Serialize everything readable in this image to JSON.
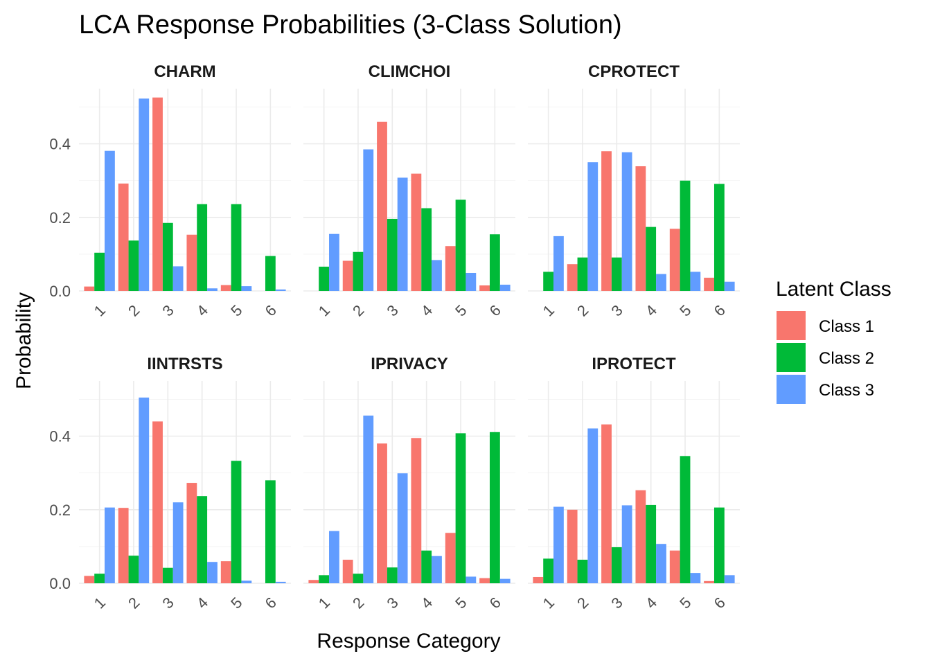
{
  "chart_data": {
    "type": "bar",
    "title": "LCA Response Probabilities (3-Class Solution)",
    "xlabel": "Response Category",
    "ylabel": "Probability",
    "categories": [
      "1",
      "2",
      "3",
      "4",
      "5",
      "6"
    ],
    "yticks": [
      "0.0",
      "0.2",
      "0.4"
    ],
    "ylim": [
      0,
      0.55
    ],
    "grid": true,
    "legend": {
      "title": "Latent Class",
      "position": "right",
      "entries": [
        "Class 1",
        "Class 2",
        "Class 3"
      ]
    },
    "colors": [
      "#F8766D",
      "#00BA38",
      "#619CFF"
    ],
    "facets": [
      {
        "name": "CHARM",
        "series": [
          {
            "name": "Class 1",
            "values": [
              0.012,
              0.292,
              0.526,
              0.153,
              0.016,
              0.0
            ]
          },
          {
            "name": "Class 2",
            "values": [
              0.104,
              0.137,
              0.185,
              0.236,
              0.236,
              0.095
            ]
          },
          {
            "name": "Class 3",
            "values": [
              0.381,
              0.523,
              0.067,
              0.007,
              0.013,
              0.004
            ]
          }
        ]
      },
      {
        "name": "CLIMCHOI",
        "series": [
          {
            "name": "Class 1",
            "values": [
              0.0,
              0.082,
              0.46,
              0.319,
              0.122,
              0.015
            ]
          },
          {
            "name": "Class 2",
            "values": [
              0.066,
              0.106,
              0.196,
              0.225,
              0.248,
              0.154
            ]
          },
          {
            "name": "Class 3",
            "values": [
              0.155,
              0.385,
              0.308,
              0.084,
              0.049,
              0.017
            ]
          }
        ]
      },
      {
        "name": "CPROTECT",
        "series": [
          {
            "name": "Class 1",
            "values": [
              0.0,
              0.073,
              0.38,
              0.339,
              0.169,
              0.036
            ]
          },
          {
            "name": "Class 2",
            "values": [
              0.052,
              0.091,
              0.091,
              0.174,
              0.3,
              0.291
            ]
          },
          {
            "name": "Class 3",
            "values": [
              0.149,
              0.35,
              0.377,
              0.046,
              0.052,
              0.025
            ]
          }
        ]
      },
      {
        "name": "IINTRSTS",
        "series": [
          {
            "name": "Class 1",
            "values": [
              0.02,
              0.205,
              0.44,
              0.273,
              0.06,
              0.0
            ]
          },
          {
            "name": "Class 2",
            "values": [
              0.026,
              0.075,
              0.042,
              0.237,
              0.333,
              0.28
            ]
          },
          {
            "name": "Class 3",
            "values": [
              0.206,
              0.505,
              0.22,
              0.058,
              0.007,
              0.004
            ]
          }
        ]
      },
      {
        "name": "IPRIVACY",
        "series": [
          {
            "name": "Class 1",
            "values": [
              0.009,
              0.064,
              0.38,
              0.395,
              0.137,
              0.014
            ]
          },
          {
            "name": "Class 2",
            "values": [
              0.022,
              0.026,
              0.043,
              0.089,
              0.408,
              0.411
            ]
          },
          {
            "name": "Class 3",
            "values": [
              0.142,
              0.456,
              0.299,
              0.074,
              0.018,
              0.012
            ]
          }
        ]
      },
      {
        "name": "IPROTECT",
        "series": [
          {
            "name": "Class 1",
            "values": [
              0.017,
              0.2,
              0.432,
              0.253,
              0.089,
              0.006
            ]
          },
          {
            "name": "Class 2",
            "values": [
              0.067,
              0.064,
              0.098,
              0.213,
              0.346,
              0.206
            ]
          },
          {
            "name": "Class 3",
            "values": [
              0.208,
              0.421,
              0.212,
              0.107,
              0.028,
              0.022
            ]
          }
        ]
      }
    ]
  }
}
